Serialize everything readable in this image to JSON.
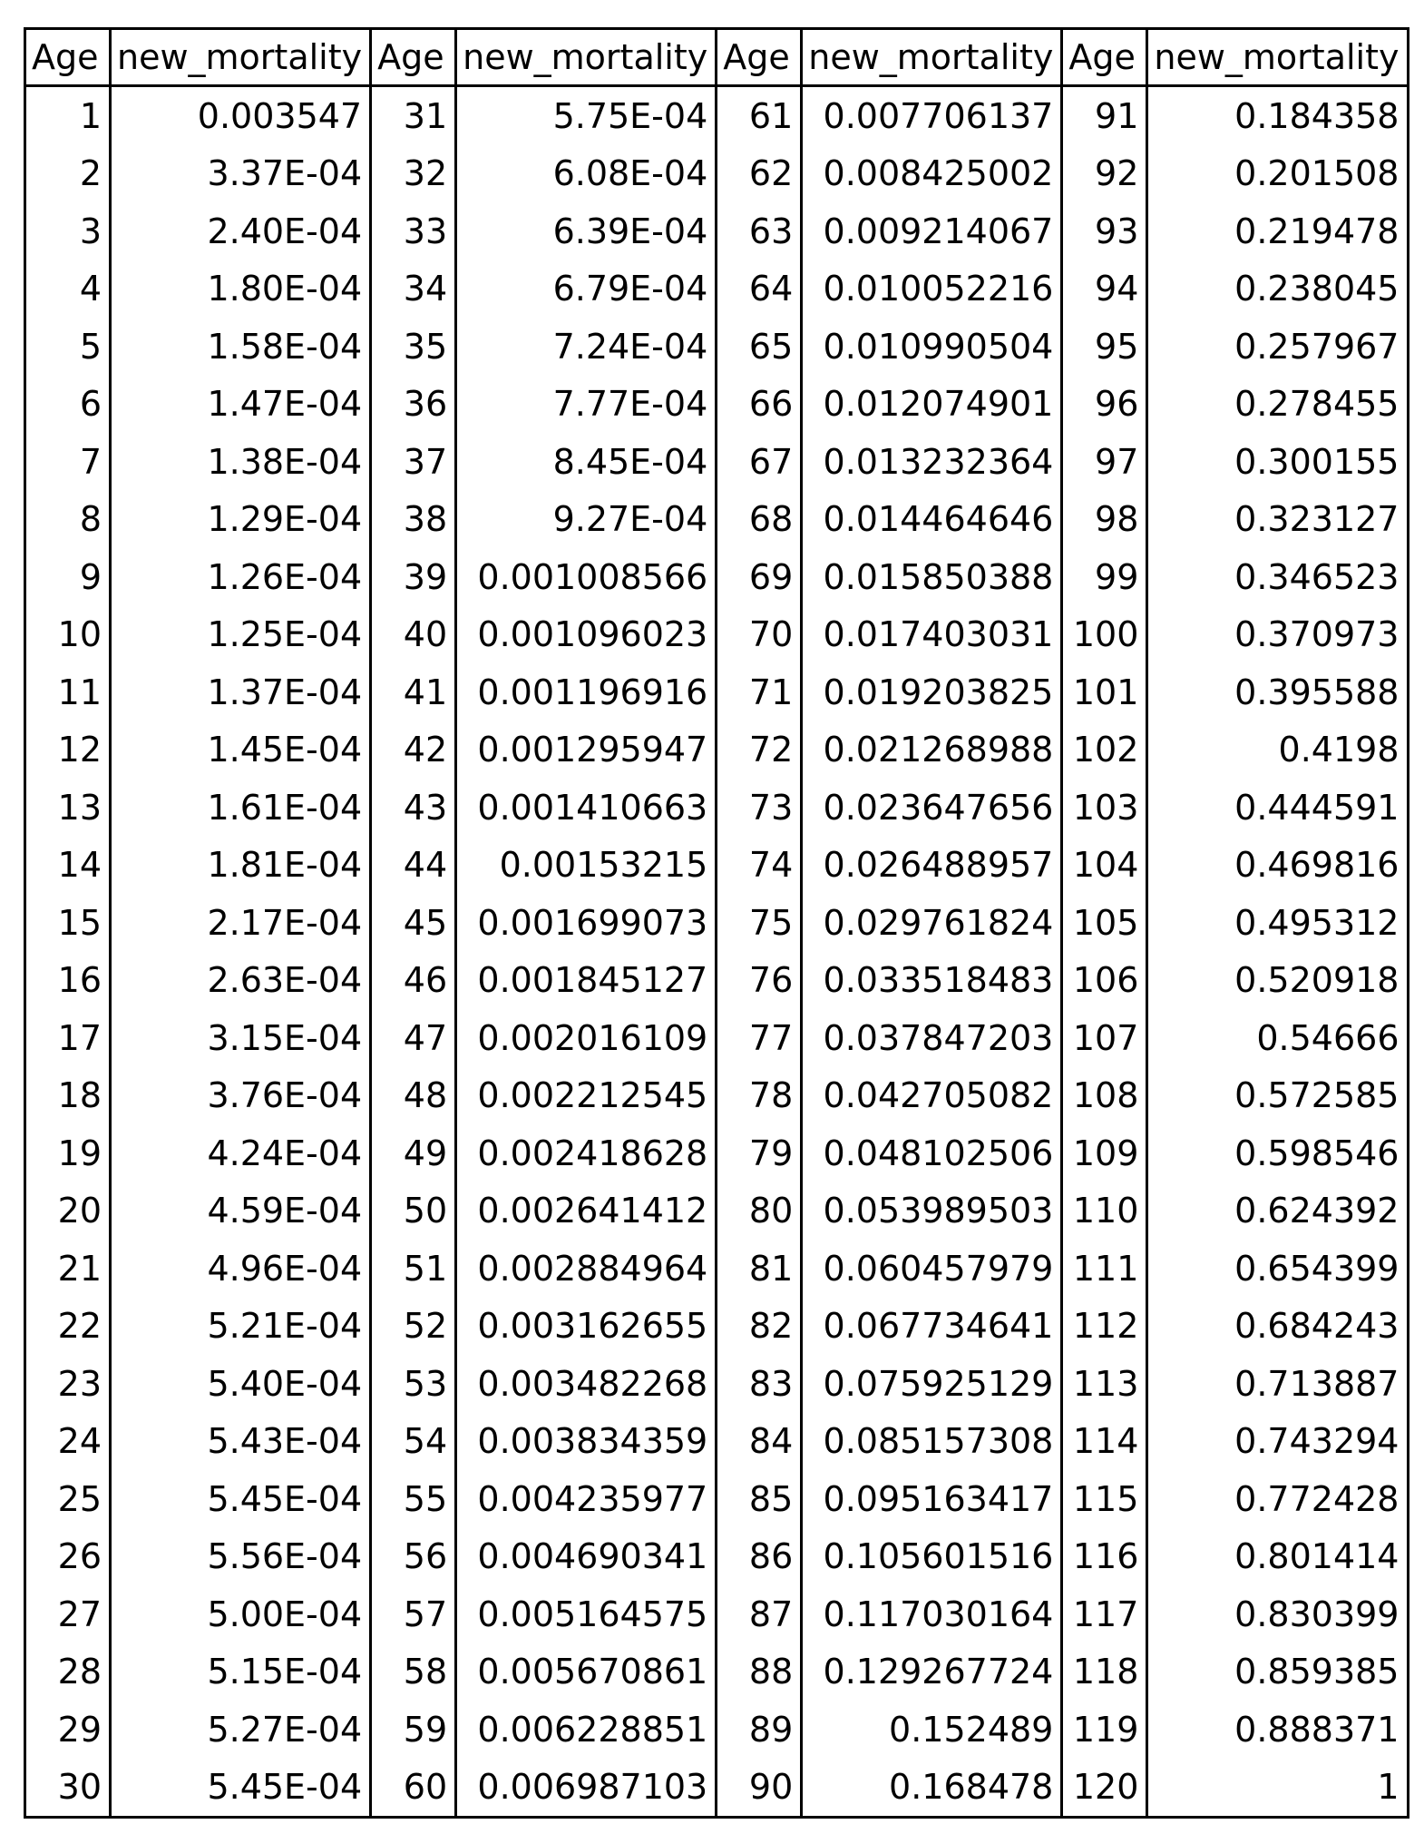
{
  "headers": [
    "Age",
    "new_mortality",
    "Age",
    "new_mortality",
    "Age",
    "new_mortality",
    "Age",
    "new_mortality"
  ],
  "rows": [
    [
      "1",
      "0.003547",
      "31",
      "5.75E-04",
      "61",
      "0.007706137",
      "91",
      "0.184358"
    ],
    [
      "2",
      "3.37E-04",
      "32",
      "6.08E-04",
      "62",
      "0.008425002",
      "92",
      "0.201508"
    ],
    [
      "3",
      "2.40E-04",
      "33",
      "6.39E-04",
      "63",
      "0.009214067",
      "93",
      "0.219478"
    ],
    [
      "4",
      "1.80E-04",
      "34",
      "6.79E-04",
      "64",
      "0.010052216",
      "94",
      "0.238045"
    ],
    [
      "5",
      "1.58E-04",
      "35",
      "7.24E-04",
      "65",
      "0.010990504",
      "95",
      "0.257967"
    ],
    [
      "6",
      "1.47E-04",
      "36",
      "7.77E-04",
      "66",
      "0.012074901",
      "96",
      "0.278455"
    ],
    [
      "7",
      "1.38E-04",
      "37",
      "8.45E-04",
      "67",
      "0.013232364",
      "97",
      "0.300155"
    ],
    [
      "8",
      "1.29E-04",
      "38",
      "9.27E-04",
      "68",
      "0.014464646",
      "98",
      "0.323127"
    ],
    [
      "9",
      "1.26E-04",
      "39",
      "0.001008566",
      "69",
      "0.015850388",
      "99",
      "0.346523"
    ],
    [
      "10",
      "1.25E-04",
      "40",
      "0.001096023",
      "70",
      "0.017403031",
      "100",
      "0.370973"
    ],
    [
      "11",
      "1.37E-04",
      "41",
      "0.001196916",
      "71",
      "0.019203825",
      "101",
      "0.395588"
    ],
    [
      "12",
      "1.45E-04",
      "42",
      "0.001295947",
      "72",
      "0.021268988",
      "102",
      "0.4198"
    ],
    [
      "13",
      "1.61E-04",
      "43",
      "0.001410663",
      "73",
      "0.023647656",
      "103",
      "0.444591"
    ],
    [
      "14",
      "1.81E-04",
      "44",
      "0.00153215",
      "74",
      "0.026488957",
      "104",
      "0.469816"
    ],
    [
      "15",
      "2.17E-04",
      "45",
      "0.001699073",
      "75",
      "0.029761824",
      "105",
      "0.495312"
    ],
    [
      "16",
      "2.63E-04",
      "46",
      "0.001845127",
      "76",
      "0.033518483",
      "106",
      "0.520918"
    ],
    [
      "17",
      "3.15E-04",
      "47",
      "0.002016109",
      "77",
      "0.037847203",
      "107",
      "0.54666"
    ],
    [
      "18",
      "3.76E-04",
      "48",
      "0.002212545",
      "78",
      "0.042705082",
      "108",
      "0.572585"
    ],
    [
      "19",
      "4.24E-04",
      "49",
      "0.002418628",
      "79",
      "0.048102506",
      "109",
      "0.598546"
    ],
    [
      "20",
      "4.59E-04",
      "50",
      "0.002641412",
      "80",
      "0.053989503",
      "110",
      "0.624392"
    ],
    [
      "21",
      "4.96E-04",
      "51",
      "0.002884964",
      "81",
      "0.060457979",
      "111",
      "0.654399"
    ],
    [
      "22",
      "5.21E-04",
      "52",
      "0.003162655",
      "82",
      "0.067734641",
      "112",
      "0.684243"
    ],
    [
      "23",
      "5.40E-04",
      "53",
      "0.003482268",
      "83",
      "0.075925129",
      "113",
      "0.713887"
    ],
    [
      "24",
      "5.43E-04",
      "54",
      "0.003834359",
      "84",
      "0.085157308",
      "114",
      "0.743294"
    ],
    [
      "25",
      "5.45E-04",
      "55",
      "0.004235977",
      "85",
      "0.095163417",
      "115",
      "0.772428"
    ],
    [
      "26",
      "5.56E-04",
      "56",
      "0.004690341",
      "86",
      "0.105601516",
      "116",
      "0.801414"
    ],
    [
      "27",
      "5.00E-04",
      "57",
      "0.005164575",
      "87",
      "0.117030164",
      "117",
      "0.830399"
    ],
    [
      "28",
      "5.15E-04",
      "58",
      "0.005670861",
      "88",
      "0.129267724",
      "118",
      "0.859385"
    ],
    [
      "29",
      "5.27E-04",
      "59",
      "0.006228851",
      "89",
      "0.152489",
      "119",
      "0.888371"
    ],
    [
      "30",
      "5.45E-04",
      "60",
      "0.006987103",
      "90",
      "0.168478",
      "120",
      "1"
    ]
  ]
}
